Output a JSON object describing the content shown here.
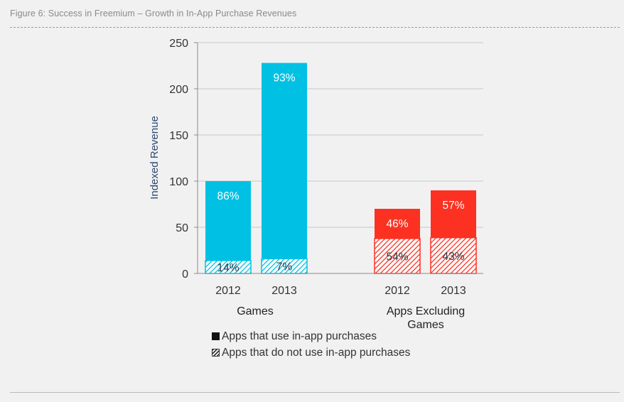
{
  "figure_title": "Figure 6: Success in Freemium – Growth in In-App Purchase Revenues",
  "colors": {
    "games": "#00c1e4",
    "apps": "#fc3122",
    "grid": "#c8c8c8",
    "axis": "#8a8a8a"
  },
  "chart_data": {
    "type": "bar",
    "stacked": true,
    "ylabel": "Indexed Revenue",
    "ylim": [
      0,
      250
    ],
    "yticks": [
      0,
      50,
      100,
      150,
      200,
      250
    ],
    "grid": true,
    "groups": [
      {
        "label": "Games",
        "color": "#00c1e4",
        "bars": [
          {
            "x": "2012",
            "total": 100,
            "in_app_share": "86%",
            "no_in_app_share": "14%"
          },
          {
            "x": "2013",
            "total": 228,
            "in_app_share": "93%",
            "no_in_app_share": "7%"
          }
        ]
      },
      {
        "label": "Apps Excluding Games",
        "color": "#fc3122",
        "bars": [
          {
            "x": "2012",
            "total": 70,
            "in_app_share": "46%",
            "no_in_app_share": "54%"
          },
          {
            "x": "2013",
            "total": 90,
            "in_app_share": "57%",
            "no_in_app_share": "43%"
          }
        ]
      }
    ],
    "legend": [
      {
        "label": "Apps that use in-app purchases",
        "pattern": "solid"
      },
      {
        "label": "Apps that do not use in-app purchases",
        "pattern": "hatched"
      }
    ],
    "legend_position": "bottom"
  }
}
